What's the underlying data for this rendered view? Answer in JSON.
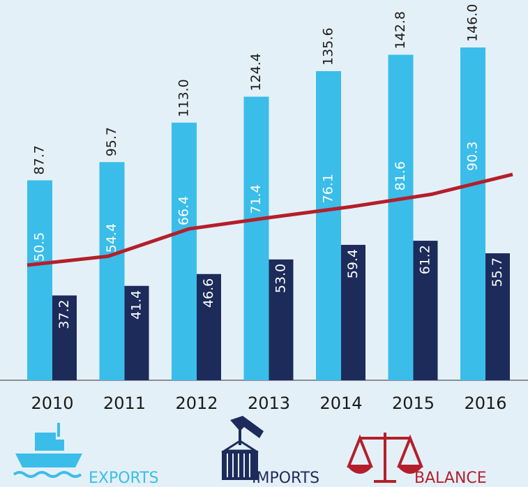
{
  "chart_data": {
    "type": "bar",
    "categories": [
      "2010",
      "2011",
      "2012",
      "2013",
      "2014",
      "2015",
      "2016"
    ],
    "series": [
      {
        "name": "EXPORTS",
        "color": "#3bbdea",
        "values": [
          87.7,
          95.7,
          113.0,
          124.4,
          135.6,
          142.8,
          146.0
        ],
        "value_labels": [
          "87.7",
          "95.7",
          "113.0",
          "124.4",
          "135.6",
          "142.8",
          "146.0"
        ]
      },
      {
        "name": "IMPORTS",
        "color": "#1d2b5b",
        "values": [
          37.2,
          41.4,
          46.6,
          53.0,
          59.4,
          61.2,
          55.7
        ],
        "value_labels": [
          "37.2",
          "41.4",
          "46.6",
          "53.0",
          "59.4",
          "61.2",
          "55.7"
        ]
      },
      {
        "name": "BALANCE",
        "color": "#b31f2b",
        "type": "line",
        "values": [
          50.5,
          54.4,
          66.4,
          71.4,
          76.1,
          81.6,
          90.3
        ],
        "value_labels": [
          "50.5",
          "54.4",
          "66.4",
          "71.4",
          "76.1",
          "81.6",
          "90.3"
        ]
      }
    ]
  }
}
